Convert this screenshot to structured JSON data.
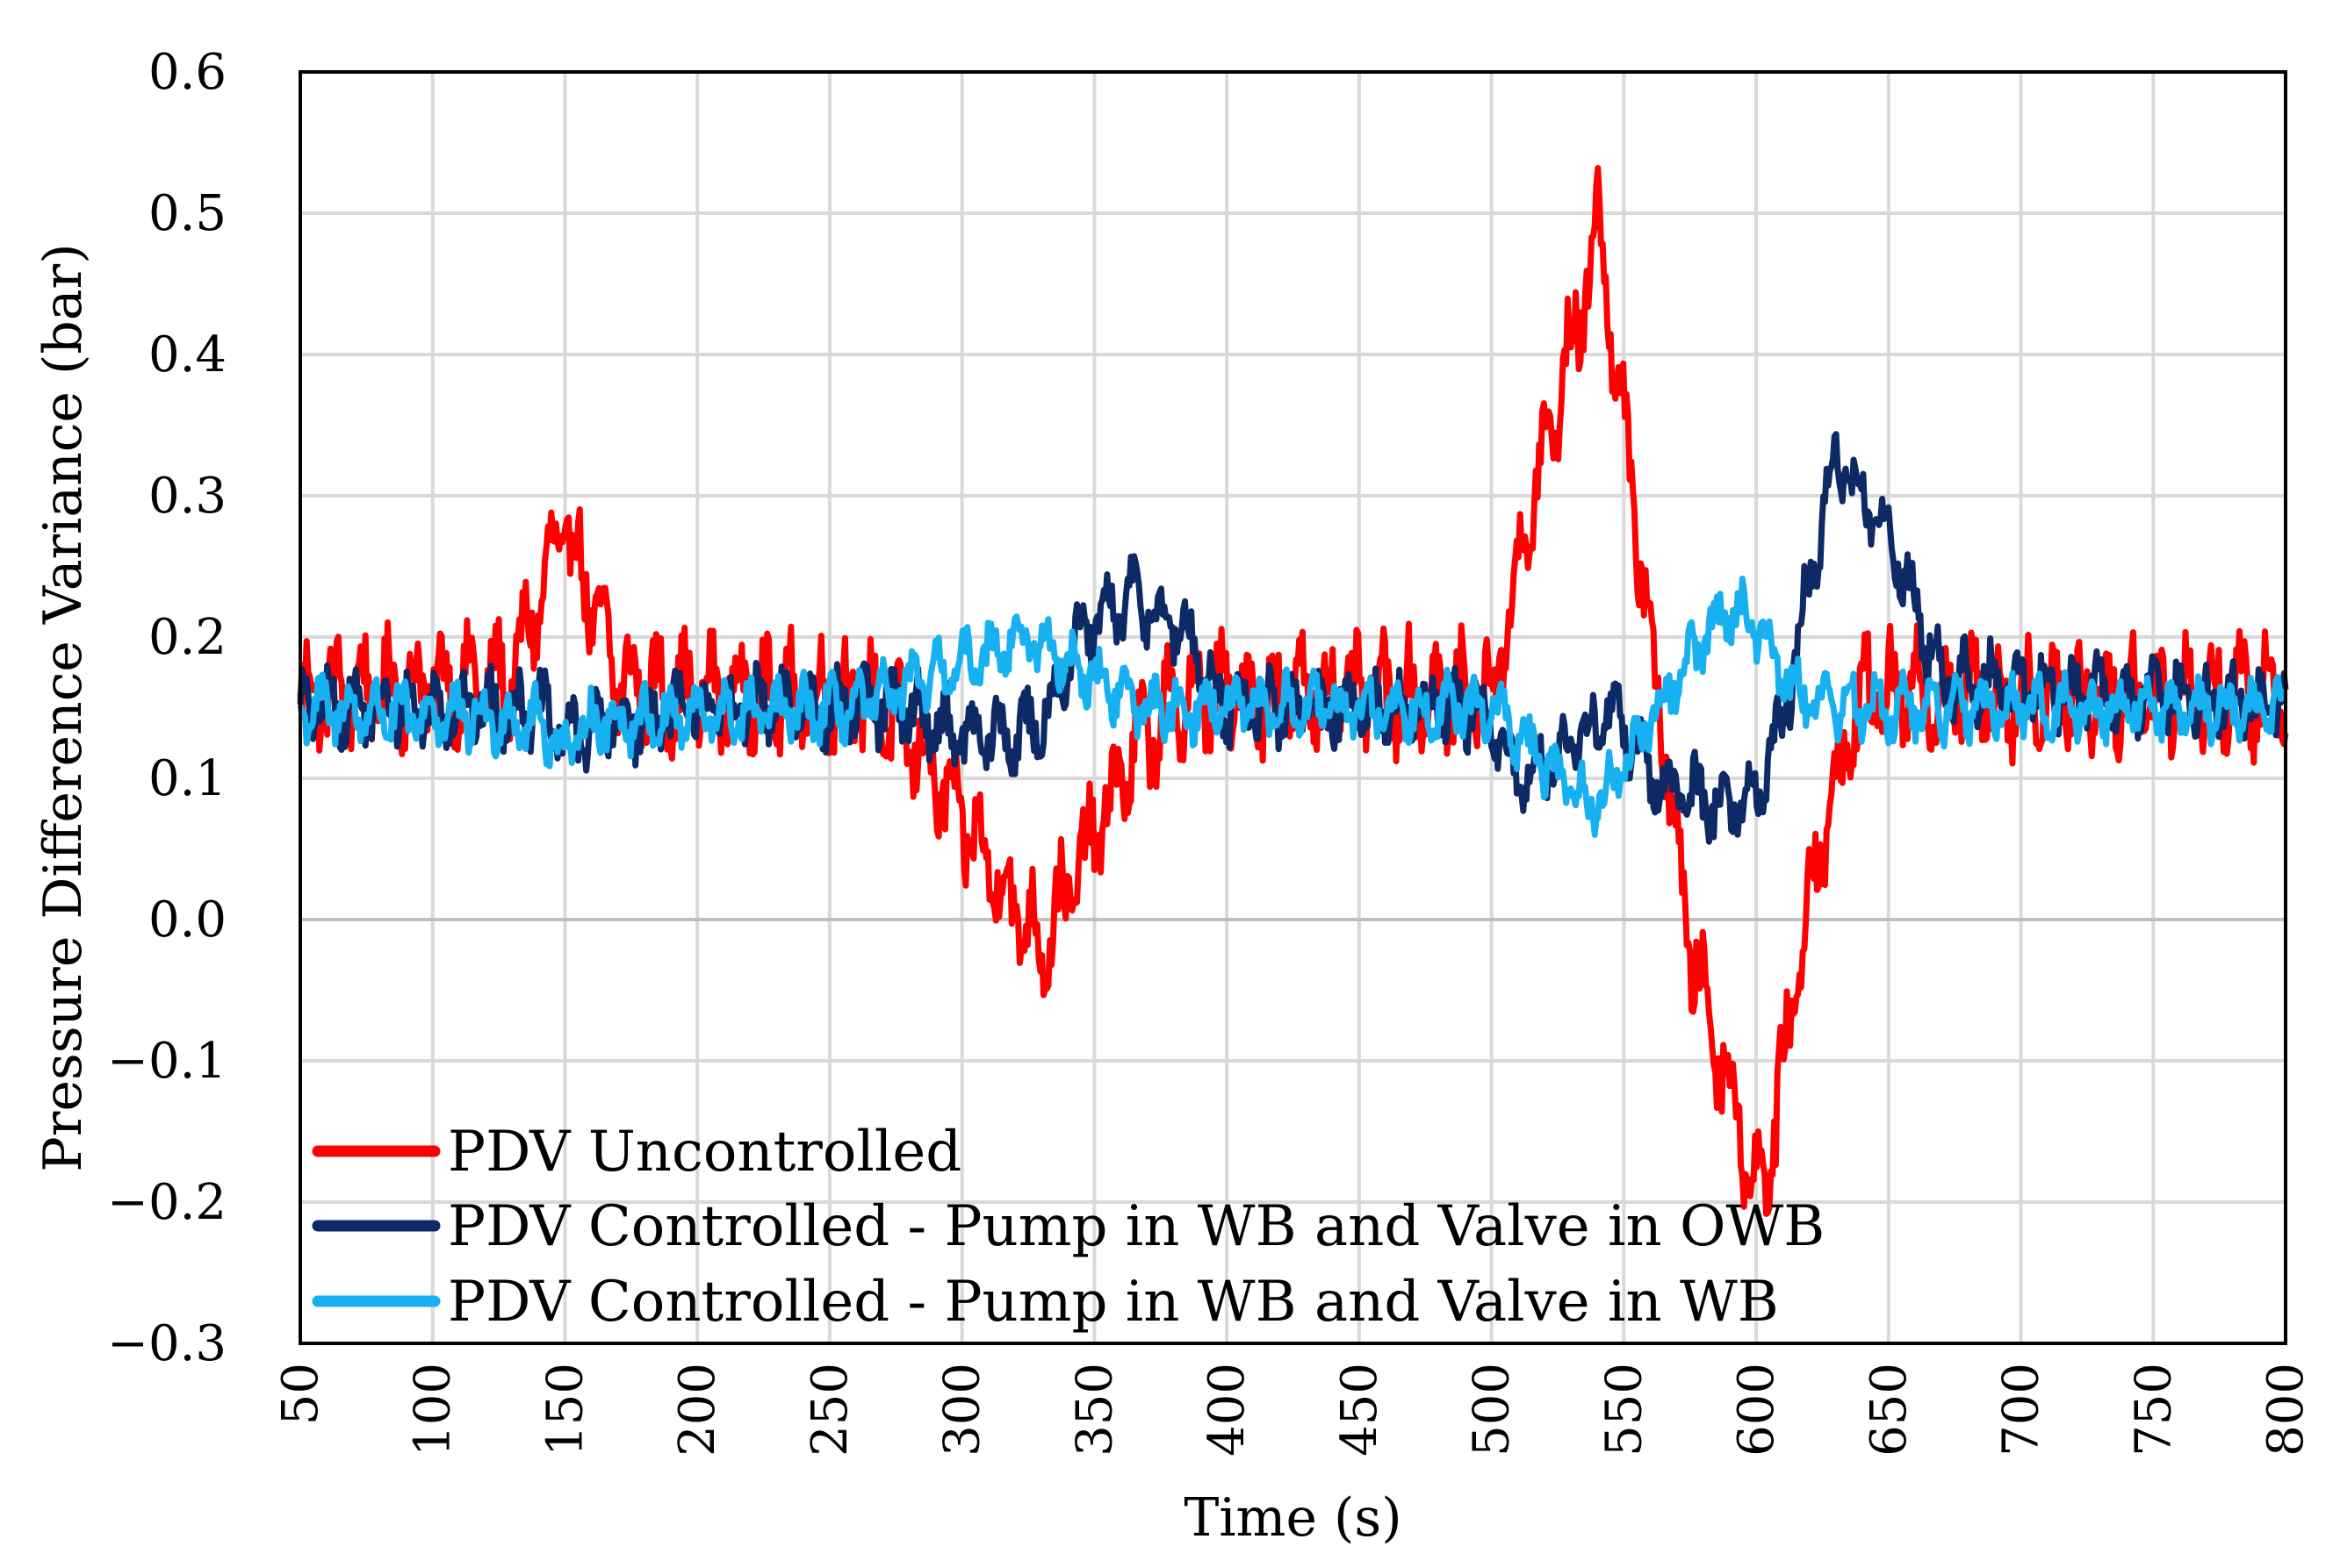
{
  "chart_data": {
    "type": "line",
    "title": "",
    "xlabel": "Time (s)",
    "ylabel": "Pressure Difference Variance (bar)",
    "xlim": [
      50,
      800
    ],
    "ylim": [
      -0.3,
      0.6
    ],
    "xticks": [
      50,
      100,
      150,
      200,
      250,
      300,
      350,
      400,
      450,
      500,
      550,
      600,
      650,
      700,
      750,
      800
    ],
    "xtick_labels": [
      "50",
      "100",
      "150",
      "200",
      "250",
      "300",
      "350",
      "400",
      "450",
      "500",
      "550",
      "600",
      "650",
      "700",
      "750",
      "800"
    ],
    "yticks": [
      -0.3,
      -0.2,
      -0.1,
      0.0,
      0.1,
      0.2,
      0.3,
      0.4,
      0.5,
      0.6
    ],
    "ytick_labels": [
      "−0.3",
      "−0.2",
      "−0.1",
      "0.0",
      "0.1",
      "0.2",
      "0.3",
      "0.4",
      "0.5",
      "0.6"
    ],
    "grid": true,
    "legend_position": "bottom-left",
    "series": [
      {
        "name": "PDV Uncontrolled",
        "color": "#ff0000",
        "noise_amplitude": 0.045,
        "x": [
          50,
          130,
          150,
          170,
          190,
          260,
          280,
          300,
          320,
          330,
          345,
          365,
          385,
          500,
          520,
          535,
          540,
          560,
          575,
          590,
          600,
          605,
          620,
          640,
          660,
          800
        ],
        "y": [
          0.16,
          0.17,
          0.28,
          0.17,
          0.16,
          0.16,
          0.13,
          0.07,
          0.01,
          -0.02,
          0.04,
          0.12,
          0.16,
          0.16,
          0.33,
          0.44,
          0.5,
          0.2,
          -0.02,
          -0.12,
          -0.19,
          -0.17,
          0.02,
          0.16,
          0.16,
          0.16
        ]
      },
      {
        "name": "PDV Controlled - Pump in WB and Valve in OWB",
        "color": "#0d2a66",
        "noise_amplitude": 0.03,
        "x": [
          50,
          140,
          150,
          200,
          280,
          300,
          320,
          330,
          345,
          365,
          385,
          400,
          495,
          510,
          530,
          545,
          560,
          575,
          590,
          600,
          610,
          630,
          650,
          670,
          800
        ],
        "y": [
          0.15,
          0.15,
          0.13,
          0.15,
          0.15,
          0.13,
          0.13,
          0.14,
          0.2,
          0.23,
          0.2,
          0.15,
          0.15,
          0.1,
          0.12,
          0.15,
          0.1,
          0.09,
          0.08,
          0.09,
          0.14,
          0.33,
          0.27,
          0.17,
          0.15
        ]
      },
      {
        "name": "PDV Controlled - Pump in WB and Valve in WB",
        "color": "#17b0f0",
        "noise_amplitude": 0.025,
        "x": [
          50,
          140,
          150,
          160,
          260,
          300,
          320,
          335,
          350,
          370,
          400,
          480,
          500,
          520,
          540,
          560,
          580,
          590,
          600,
          615,
          640,
          800
        ],
        "y": [
          0.15,
          0.14,
          0.12,
          0.14,
          0.15,
          0.18,
          0.2,
          0.19,
          0.17,
          0.15,
          0.15,
          0.15,
          0.15,
          0.11,
          0.08,
          0.14,
          0.2,
          0.22,
          0.21,
          0.16,
          0.15,
          0.15
        ]
      }
    ]
  }
}
